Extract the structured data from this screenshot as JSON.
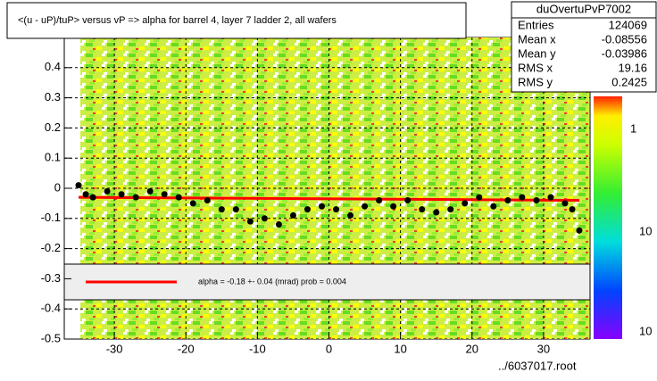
{
  "chart_data": {
    "type": "scatter",
    "title": "<(u - uP)/tuP> versus   vP => alpha for barrel 4, layer 7 ladder 2, all wafers",
    "stats": {
      "name": "duOvertuPvP7002",
      "rows": [
        [
          "Entries",
          124069
        ],
        [
          "Mean x",
          -0.08556
        ],
        [
          "Mean y",
          -0.03986
        ],
        [
          "RMS x",
          19.16
        ],
        [
          "RMS y",
          0.2425
        ]
      ]
    },
    "footer": "../6037017.root",
    "xlim": [
      -37,
      36.5
    ],
    "ylim": [
      -0.5,
      0.5
    ],
    "xticks": [
      -30,
      -20,
      -10,
      0,
      10,
      20,
      30
    ],
    "yticks": [
      -0.5,
      -0.4,
      -0.3,
      -0.2,
      -0.1,
      0,
      0.1,
      0.2,
      0.3,
      0.4
    ],
    "grid": true,
    "colorbar_labels": [
      "1",
      "10",
      "10"
    ],
    "x": [
      -35,
      -34,
      -33,
      -31,
      -29,
      -27,
      -25,
      -23,
      -21,
      -19,
      -17,
      -15,
      -13,
      -11,
      -9,
      -7,
      -5,
      -3,
      -1,
      1,
      3,
      5,
      7,
      9,
      11,
      13,
      15,
      17,
      19,
      21,
      23,
      25,
      27,
      29,
      31,
      33,
      34,
      35
    ],
    "series": [
      {
        "color": "#000000",
        "values": [
          0.01,
          -0.02,
          -0.03,
          -0.01,
          -0.02,
          -0.03,
          -0.01,
          -0.02,
          -0.03,
          -0.05,
          -0.04,
          -0.07,
          -0.07,
          -0.11,
          -0.1,
          -0.12,
          -0.09,
          -0.07,
          -0.06,
          -0.07,
          -0.09,
          -0.06,
          -0.04,
          -0.06,
          -0.04,
          -0.07,
          -0.08,
          -0.07,
          -0.05,
          -0.03,
          -0.06,
          -0.04,
          -0.03,
          -0.04,
          -0.03,
          -0.05,
          -0.07,
          -0.14
        ]
      }
    ],
    "fit": {
      "label": "alpha =   -0.18 +-  0.04 (mrad) prob = 0.004",
      "color": "#ff0000",
      "x": [
        -35,
        35
      ],
      "values": [
        -0.03,
        -0.04
      ]
    }
  }
}
